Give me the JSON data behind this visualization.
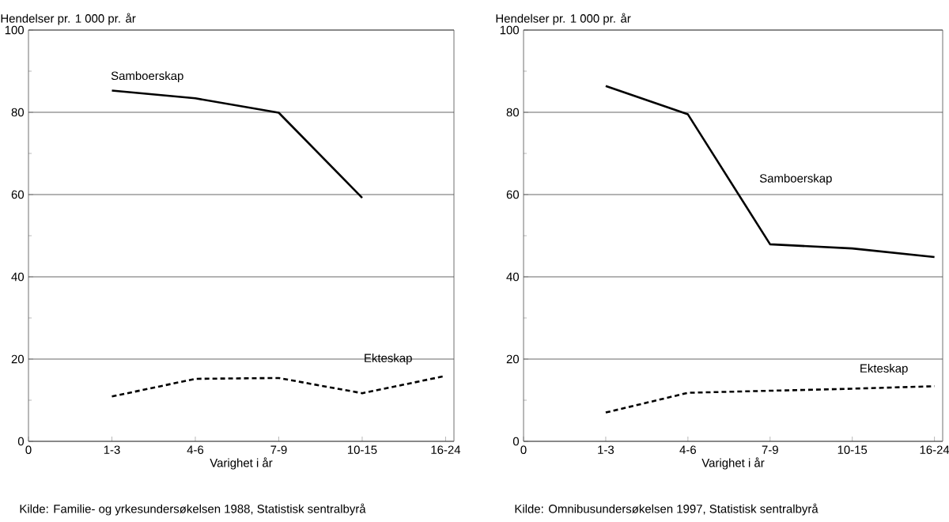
{
  "chart_data": [
    {
      "type": "line",
      "ylabel": "Hendelser pr. 1 000 pr. år",
      "xlabel": "Varighet i år",
      "ylim": [
        0,
        100
      ],
      "categories": [
        "0",
        "1-3",
        "4-6",
        "7-9",
        "10-15",
        "16-24"
      ],
      "yticks": [
        0,
        {
          "value": 10,
          "label": null
        },
        20,
        {
          "value": 30,
          "label": null
        },
        40,
        {
          "value": 50,
          "label": null
        },
        60,
        {
          "value": 70,
          "label": null
        },
        80,
        {
          "value": 90,
          "label": null
        },
        100
      ],
      "grid": "y",
      "legend": false,
      "series": [
        {
          "name": "Samboerskap",
          "color": "#000000",
          "line_style": "solid",
          "values": [
            null,
            85.3,
            83.4,
            79.9,
            59.2,
            null
          ]
        },
        {
          "name": "Ekteskap",
          "color": "#000000",
          "line_style": "dashed",
          "values": [
            null,
            10.9,
            15.2,
            15.4,
            11.7,
            15.9
          ]
        }
      ],
      "annotations": [
        "Kilde: Familie- og yrkesundersøkelsen 1988, Statistisk sentralbyrå"
      ]
    },
    {
      "type": "line",
      "ylabel": "Hendelser pr. 1 000 pr. år",
      "xlabel": "Varighet i år",
      "ylim": [
        0,
        100
      ],
      "categories": [
        "0",
        "1-3",
        "4-6",
        "7-9",
        "10-15",
        "16-24"
      ],
      "yticks": [
        0,
        {
          "value": 10,
          "label": null
        },
        20,
        {
          "value": 30,
          "label": null
        },
        40,
        {
          "value": 50,
          "label": null
        },
        60,
        {
          "value": 70,
          "label": null
        },
        80,
        {
          "value": 90,
          "label": null
        },
        100
      ],
      "grid": "y",
      "legend": false,
      "series": [
        {
          "name": "Samboerskap",
          "color": "#000000",
          "line_style": "solid",
          "values": [
            null,
            86.4,
            79.5,
            47.9,
            46.9,
            44.8
          ]
        },
        {
          "name": "Ekteskap",
          "color": "#000000",
          "line_style": "dashed",
          "values": [
            null,
            7.0,
            11.8,
            12.3,
            12.8,
            13.4
          ]
        }
      ],
      "annotations": [
        "Kilde: Omnibusundersøkelsen 1997, Statistisk sentralbyrå"
      ]
    }
  ]
}
